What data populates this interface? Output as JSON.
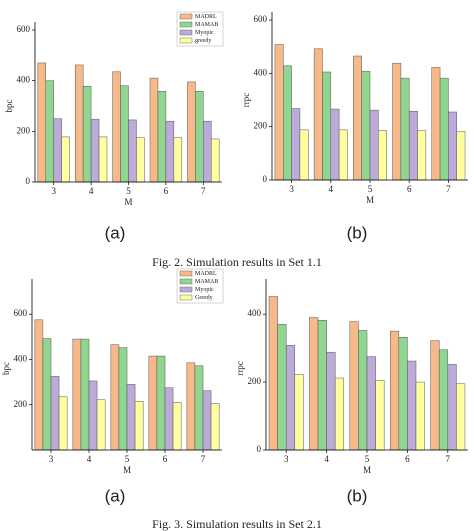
{
  "captions": [
    "Fig. 2.  Simulation results in Set 1.1",
    "Fig. 3.  Simulation results in Set 2.1"
  ],
  "chart_data": [
    {
      "type": "bar",
      "label": "(a)",
      "x_label": "M",
      "y_label": "bpc",
      "categories": [
        "3",
        "4",
        "5",
        "6",
        "7"
      ],
      "ylim": [
        0,
        600
      ],
      "yticks": [
        0,
        200,
        400,
        600
      ],
      "series": [
        {
          "name": "MADRL",
          "color": "#f7b98a",
          "values": [
            470,
            462,
            435,
            410,
            395
          ]
        },
        {
          "name": "MAMAB",
          "color": "#90d690",
          "values": [
            400,
            378,
            380,
            358,
            358
          ]
        },
        {
          "name": "Myopic",
          "color": "#bcaad8",
          "values": [
            250,
            248,
            245,
            240,
            240
          ]
        },
        {
          "name": "greedy",
          "color": "#ffffa0",
          "values": [
            178,
            178,
            175,
            175,
            170
          ]
        }
      ]
    },
    {
      "type": "bar",
      "label": "(b)",
      "x_label": "M",
      "y_label": "rrpc",
      "categories": [
        "3",
        "4",
        "5",
        "6",
        "7"
      ],
      "ylim": [
        0,
        600
      ],
      "yticks": [
        0,
        200,
        400,
        600
      ],
      "series": [
        {
          "name": "MADRL",
          "color": "#f7b98a",
          "values": [
            508,
            492,
            465,
            438,
            422
          ]
        },
        {
          "name": "MAMAB",
          "color": "#90d690",
          "values": [
            428,
            405,
            408,
            382,
            382
          ]
        },
        {
          "name": "Myopic",
          "color": "#bcaad8",
          "values": [
            268,
            266,
            262,
            258,
            255
          ]
        },
        {
          "name": "greedy",
          "color": "#ffffa0",
          "values": [
            188,
            188,
            185,
            185,
            182
          ]
        }
      ]
    },
    {
      "type": "bar",
      "label": "(a)",
      "x_label": "M",
      "y_label": "bpc",
      "categories": [
        "3",
        "4",
        "5",
        "6",
        "7"
      ],
      "ylim": [
        0,
        720
      ],
      "yticks": [
        200,
        400,
        600
      ],
      "legend": "upper right",
      "series": [
        {
          "name": "MADRL",
          "color": "#f7b98a",
          "values": [
            575,
            490,
            465,
            415,
            385
          ]
        },
        {
          "name": "MAMAB",
          "color": "#90d690",
          "values": [
            492,
            490,
            452,
            415,
            372
          ]
        },
        {
          "name": "Myopic",
          "color": "#bcaad8",
          "values": [
            325,
            305,
            290,
            275,
            262
          ]
        },
        {
          "name": "Greedy",
          "color": "#ffffa0",
          "values": [
            235,
            222,
            215,
            210,
            205
          ]
        }
      ]
    },
    {
      "type": "bar",
      "label": "(b)",
      "x_label": "M",
      "y_label": "rrpc",
      "categories": [
        "3",
        "4",
        "5",
        "6",
        "7"
      ],
      "ylim": [
        0,
        480
      ],
      "yticks": [
        0,
        200,
        400
      ],
      "series": [
        {
          "name": "MADRL",
          "color": "#f7b98a",
          "values": [
            452,
            390,
            378,
            350,
            322
          ]
        },
        {
          "name": "MAMAB",
          "color": "#90d690",
          "values": [
            370,
            382,
            352,
            332,
            295
          ]
        },
        {
          "name": "Myopic",
          "color": "#bcaad8",
          "values": [
            308,
            288,
            275,
            262,
            252
          ]
        },
        {
          "name": "Greedy",
          "color": "#ffffa0",
          "values": [
            222,
            212,
            205,
            200,
            195
          ]
        }
      ]
    }
  ]
}
